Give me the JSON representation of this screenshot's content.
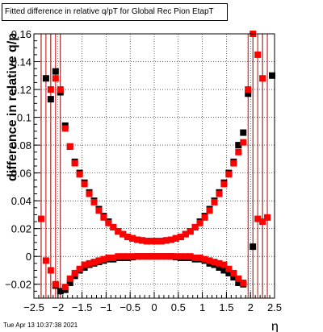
{
  "chart_data": {
    "type": "scatter",
    "title": "Fitted difference in relative q/pT for Global Rec Pion EtapT",
    "xlabel": "η",
    "ylabel": "difference in relative q/p",
    "xlim": [
      -2.5,
      2.5
    ],
    "ylim": [
      -0.03,
      0.16
    ],
    "grid": true,
    "x_ticks": [
      -2.5,
      -2,
      -1.5,
      -1,
      -0.5,
      0,
      0.5,
      1,
      1.5,
      2,
      2.5
    ],
    "x_tick_labels": [
      "−2.5",
      "−2",
      "−1.5",
      "−1",
      "−0.5",
      "0",
      "0.5",
      "1",
      "1.5",
      "2",
      "2.5"
    ],
    "y_ticks": [
      -0.02,
      0,
      0.02,
      0.04,
      0.06,
      0.08,
      0.1,
      0.12,
      0.14,
      0.16
    ],
    "y_tick_labels": [
      "−0.02",
      "0",
      "0.02",
      "0.04",
      "0.06",
      "0.08",
      "0.1",
      "0.12",
      "0.14",
      "0.16"
    ],
    "series": [
      {
        "color": "#000000",
        "marker": "square",
        "points": [
          [
            -2.25,
            0.128
          ],
          [
            -2.15,
            0.113
          ],
          [
            -2.05,
            0.133
          ],
          [
            -1.95,
            0.118
          ],
          [
            -1.85,
            0.094
          ],
          [
            -1.75,
            0.079
          ],
          [
            -1.65,
            0.068
          ],
          [
            -1.55,
            0.06
          ],
          [
            -1.45,
            0.053
          ],
          [
            -1.35,
            0.046
          ],
          [
            -1.25,
            0.04
          ],
          [
            -1.15,
            0.034
          ],
          [
            -1.05,
            0.029
          ],
          [
            -0.95,
            0.025
          ],
          [
            -0.85,
            0.021
          ],
          [
            -0.75,
            0.018
          ],
          [
            -0.65,
            0.016
          ],
          [
            -0.55,
            0.014
          ],
          [
            -0.45,
            0.013
          ],
          [
            -0.35,
            0.012
          ],
          [
            -0.25,
            0.0115
          ],
          [
            -0.15,
            0.011
          ],
          [
            -0.05,
            0.011
          ],
          [
            0.05,
            0.011
          ],
          [
            0.15,
            0.011
          ],
          [
            0.25,
            0.0115
          ],
          [
            0.35,
            0.012
          ],
          [
            0.45,
            0.013
          ],
          [
            0.55,
            0.014
          ],
          [
            0.65,
            0.016
          ],
          [
            0.75,
            0.018
          ],
          [
            0.85,
            0.021
          ],
          [
            0.95,
            0.025
          ],
          [
            1.05,
            0.029
          ],
          [
            1.15,
            0.034
          ],
          [
            1.25,
            0.04
          ],
          [
            1.35,
            0.046
          ],
          [
            1.45,
            0.053
          ],
          [
            1.55,
            0.06
          ],
          [
            1.65,
            0.068
          ],
          [
            1.75,
            0.08
          ],
          [
            1.85,
            0.089
          ],
          [
            1.95,
            0.117
          ],
          [
            2.45,
            0.13
          ],
          [
            -2.05,
            -0.021
          ],
          [
            -1.95,
            -0.025
          ],
          [
            -1.85,
            -0.024
          ],
          [
            -1.75,
            -0.019
          ],
          [
            -1.65,
            -0.014
          ],
          [
            -1.55,
            -0.01
          ],
          [
            -1.45,
            -0.008
          ],
          [
            -1.35,
            -0.006
          ],
          [
            -1.25,
            -0.005
          ],
          [
            -1.15,
            -0.004
          ],
          [
            -1.05,
            -0.003
          ],
          [
            -0.95,
            -0.002
          ],
          [
            -0.85,
            -0.002
          ],
          [
            -0.75,
            -0.001
          ],
          [
            -0.65,
            -0.001
          ],
          [
            -0.55,
            -0.001
          ],
          [
            -0.45,
            -0.0005
          ],
          [
            -0.35,
            0.0
          ],
          [
            -0.25,
            0.0
          ],
          [
            -0.15,
            0.0
          ],
          [
            -0.05,
            0.0
          ],
          [
            0.05,
            0.0
          ],
          [
            0.15,
            0.0
          ],
          [
            0.25,
            0.0
          ],
          [
            0.35,
            0.0
          ],
          [
            0.45,
            -0.0005
          ],
          [
            0.55,
            -0.001
          ],
          [
            0.65,
            -0.001
          ],
          [
            0.75,
            -0.001
          ],
          [
            0.85,
            -0.002
          ],
          [
            0.95,
            -0.002
          ],
          [
            1.05,
            -0.003
          ],
          [
            1.15,
            -0.005
          ],
          [
            1.25,
            -0.006
          ],
          [
            1.35,
            -0.008
          ],
          [
            1.45,
            -0.01
          ],
          [
            1.55,
            -0.012
          ],
          [
            1.65,
            -0.015
          ],
          [
            1.75,
            -0.019
          ],
          [
            1.85,
            -0.02
          ],
          [
            2.05,
            0.007
          ]
        ]
      },
      {
        "color": "#ff0000",
        "marker": "square",
        "points": [
          [
            -2.15,
            0.12
          ],
          [
            -2.05,
            0.128
          ],
          [
            -1.95,
            0.12
          ],
          [
            -1.85,
            0.092
          ],
          [
            -1.75,
            0.079
          ],
          [
            -1.65,
            0.067
          ],
          [
            -1.55,
            0.059
          ],
          [
            -1.45,
            0.052
          ],
          [
            -1.35,
            0.045
          ],
          [
            -1.25,
            0.039
          ],
          [
            -1.15,
            0.033
          ],
          [
            -1.05,
            0.028
          ],
          [
            -0.95,
            0.024
          ],
          [
            -0.85,
            0.021
          ],
          [
            -0.75,
            0.018
          ],
          [
            -0.65,
            0.016
          ],
          [
            -0.55,
            0.014
          ],
          [
            -0.45,
            0.013
          ],
          [
            -0.35,
            0.012
          ],
          [
            -0.25,
            0.0115
          ],
          [
            -0.15,
            0.011
          ],
          [
            -0.05,
            0.011
          ],
          [
            0.05,
            0.011
          ],
          [
            0.15,
            0.011
          ],
          [
            0.25,
            0.0115
          ],
          [
            0.35,
            0.012
          ],
          [
            0.45,
            0.013
          ],
          [
            0.55,
            0.014
          ],
          [
            0.65,
            0.016
          ],
          [
            0.75,
            0.018
          ],
          [
            0.85,
            0.021
          ],
          [
            0.95,
            0.024
          ],
          [
            1.05,
            0.028
          ],
          [
            1.15,
            0.033
          ],
          [
            1.25,
            0.039
          ],
          [
            1.35,
            0.045
          ],
          [
            1.45,
            0.052
          ],
          [
            1.55,
            0.059
          ],
          [
            1.65,
            0.067
          ],
          [
            1.75,
            0.075
          ],
          [
            1.85,
            0.082
          ],
          [
            1.95,
            0.12
          ],
          [
            2.05,
            0.16
          ],
          [
            2.15,
            0.145
          ],
          [
            2.25,
            0.128
          ],
          [
            -1.85,
            -0.022
          ],
          [
            -1.75,
            -0.016
          ],
          [
            -1.65,
            -0.012
          ],
          [
            -1.55,
            -0.009
          ],
          [
            -1.45,
            -0.006
          ],
          [
            -1.35,
            -0.005
          ],
          [
            -1.25,
            -0.004
          ],
          [
            -1.15,
            -0.003
          ],
          [
            -1.05,
            -0.002
          ],
          [
            -0.95,
            -0.001
          ],
          [
            -0.85,
            -0.001
          ],
          [
            -0.75,
            0.0
          ],
          [
            -0.65,
            0.0
          ],
          [
            -0.55,
            0.0
          ],
          [
            -0.45,
            0.0
          ],
          [
            -0.35,
            0.0
          ],
          [
            -0.25,
            0.0
          ],
          [
            -0.15,
            0.0
          ],
          [
            -0.05,
            0.0
          ],
          [
            0.05,
            0.0
          ],
          [
            0.15,
            0.0
          ],
          [
            0.25,
            0.0
          ],
          [
            0.35,
            0.0
          ],
          [
            0.45,
            0.0
          ],
          [
            0.55,
            0.0
          ],
          [
            0.65,
            0.0
          ],
          [
            0.75,
            0.0
          ],
          [
            0.85,
            -0.001
          ],
          [
            0.95,
            -0.001
          ],
          [
            1.05,
            -0.002
          ],
          [
            1.15,
            -0.003
          ],
          [
            1.25,
            -0.004
          ],
          [
            1.35,
            -0.005
          ],
          [
            1.45,
            -0.006
          ],
          [
            1.55,
            -0.009
          ],
          [
            1.65,
            -0.012
          ],
          [
            1.75,
            -0.016
          ],
          [
            1.85,
            -0.019
          ],
          [
            -2.35,
            0.027
          ],
          [
            -2.25,
            -0.003
          ],
          [
            -2.15,
            -0.01
          ],
          [
            -2.05,
            -0.02
          ],
          [
            2.15,
            0.027
          ],
          [
            2.25,
            0.025
          ],
          [
            2.35,
            0.028
          ]
        ]
      }
    ],
    "error_bars_x": [
      -2.35,
      -2.25,
      -2.15,
      -2.05,
      -1.95,
      1.95,
      2.05,
      2.15,
      2.25,
      2.35
    ]
  },
  "footer": {
    "timestamp": "Tue Apr 13 10:37:38 2021"
  }
}
